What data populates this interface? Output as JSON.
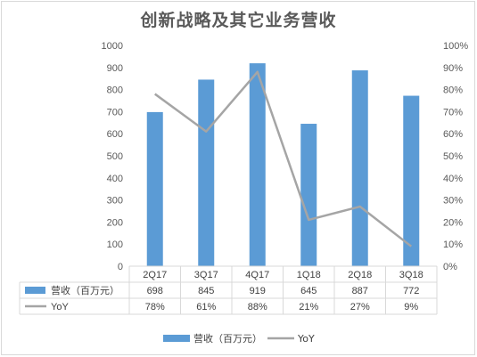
{
  "title": "创新战略及其它业务营收",
  "chart_data": {
    "type": "bar",
    "categories": [
      "2Q17",
      "3Q17",
      "4Q17",
      "1Q18",
      "2Q18",
      "3Q18"
    ],
    "series": [
      {
        "name": "营收（百万元）",
        "type": "bar",
        "axis": "left",
        "values": [
          698,
          845,
          919,
          645,
          887,
          772
        ],
        "labels": [
          "698",
          "845",
          "919",
          "645",
          "887",
          "772"
        ],
        "color": "#5b9bd5"
      },
      {
        "name": "YoY",
        "type": "line",
        "axis": "right",
        "values": [
          78,
          61,
          88,
          21,
          27,
          9
        ],
        "labels": [
          "78%",
          "61%",
          "88%",
          "21%",
          "27%",
          "9%"
        ],
        "color": "#a5a5a5"
      }
    ],
    "ylim_left": [
      0,
      1000
    ],
    "ylim_right": [
      0,
      100
    ],
    "yticks_left": [
      "0",
      "100",
      "200",
      "300",
      "400",
      "500",
      "600",
      "700",
      "800",
      "900",
      "1000"
    ],
    "yticks_right": [
      "0%",
      "10%",
      "20%",
      "30%",
      "40%",
      "50%",
      "60%",
      "70%",
      "80%",
      "90%",
      "100%"
    ],
    "grid": false,
    "data_table": true,
    "legend_position": "bottom"
  },
  "legend": {
    "bar_label": "营收（百万元）",
    "line_label": "YoY"
  }
}
